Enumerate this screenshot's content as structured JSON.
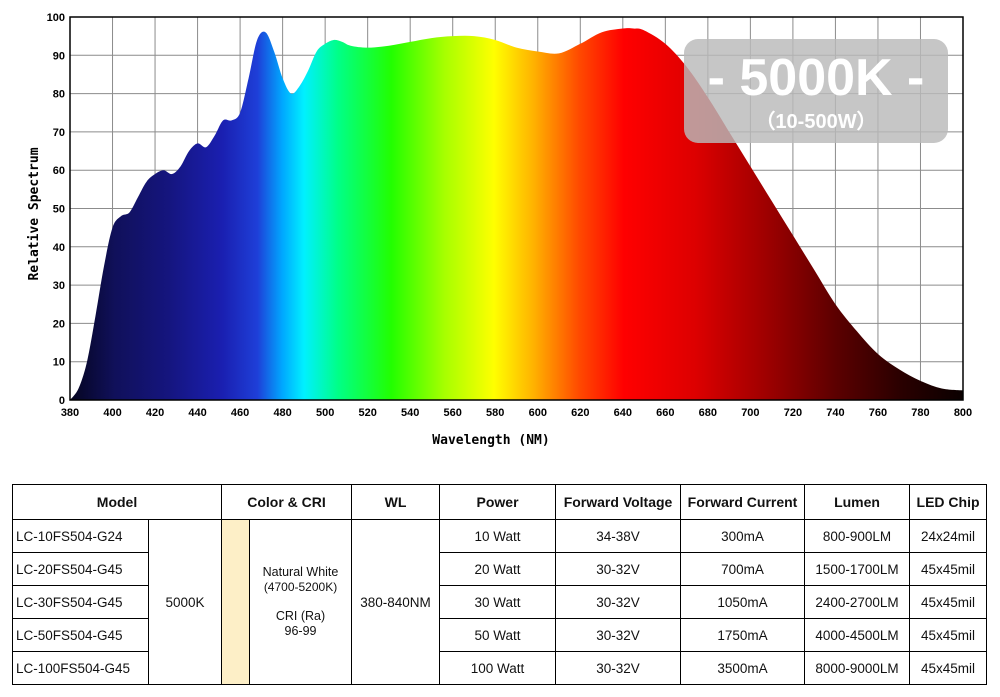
{
  "chart_data": {
    "type": "area",
    "xlabel": "Wavelength (NM)",
    "ylabel": "Relative Spectrum",
    "xlim": [
      380,
      800
    ],
    "ylim": [
      0,
      100
    ],
    "x_ticks": [
      380,
      400,
      420,
      440,
      460,
      480,
      500,
      520,
      540,
      560,
      580,
      600,
      620,
      640,
      660,
      680,
      700,
      720,
      740,
      760,
      780,
      800
    ],
    "y_ticks": [
      0,
      10,
      20,
      30,
      40,
      50,
      60,
      70,
      80,
      90,
      100
    ],
    "grid": true,
    "fill": "visible-spectrum gradient",
    "x": [
      380,
      384,
      388,
      392,
      396,
      400,
      404,
      408,
      412,
      416,
      420,
      424,
      428,
      432,
      436,
      440,
      444,
      448,
      452,
      456,
      460,
      464,
      468,
      472,
      476,
      480,
      484,
      488,
      492,
      496,
      500,
      504,
      508,
      512,
      520,
      530,
      540,
      550,
      560,
      570,
      580,
      590,
      600,
      610,
      620,
      630,
      640,
      645,
      650,
      660,
      670,
      680,
      690,
      700,
      710,
      720,
      730,
      740,
      750,
      760,
      770,
      780,
      790,
      800
    ],
    "values": [
      0,
      3,
      10,
      22,
      35,
      45,
      48,
      49,
      53,
      57,
      59,
      60,
      59,
      61,
      65,
      67,
      66,
      69,
      73,
      73,
      75,
      84,
      94,
      96,
      91,
      84,
      80,
      82,
      86,
      91,
      93,
      94,
      93.5,
      92.5,
      92,
      92.5,
      93.5,
      94.5,
      95,
      95,
      94,
      92,
      91,
      90.5,
      93,
      96,
      97,
      97,
      96.5,
      93,
      87,
      79,
      70,
      61,
      52,
      43,
      34,
      25,
      18,
      12,
      8,
      5,
      3,
      2.5
    ]
  },
  "badge": {
    "main": "- 5000K -",
    "sub": "（10-500W）"
  },
  "table": {
    "headers": [
      "Model",
      "Color & CRI",
      "WL",
      "Power",
      "Forward Voltage",
      "Forward Current",
      "Lumen",
      "LED Chip"
    ],
    "cct": "5000K",
    "color_name": "Natural White",
    "color_range": "(4700-5200K)",
    "cri_label": "CRI (Ra)",
    "cri_value": "96-99",
    "wl": "380-840NM",
    "swatch_color": "#fdefc7",
    "rows": [
      {
        "model": "LC-10FS504-G24",
        "power": "10 Watt",
        "voltage": "34-38V",
        "current": "300mA",
        "lumen": "800-900LM",
        "chip": "24x24mil"
      },
      {
        "model": "LC-20FS504-G45",
        "power": "20 Watt",
        "voltage": "30-32V",
        "current": "700mA",
        "lumen": "1500-1700LM",
        "chip": "45x45mil"
      },
      {
        "model": "LC-30FS504-G45",
        "power": "30 Watt",
        "voltage": "30-32V",
        "current": "1050mA",
        "lumen": "2400-2700LM",
        "chip": "45x45mil"
      },
      {
        "model": "LC-50FS504-G45",
        "power": "50 Watt",
        "voltage": "30-32V",
        "current": "1750mA",
        "lumen": "4000-4500LM",
        "chip": "45x45mil"
      },
      {
        "model": "LC-100FS504-G45",
        "power": "100 Watt",
        "voltage": "30-32V",
        "current": "3500mA",
        "lumen": "8000-9000LM",
        "chip": "45x45mil"
      }
    ]
  }
}
